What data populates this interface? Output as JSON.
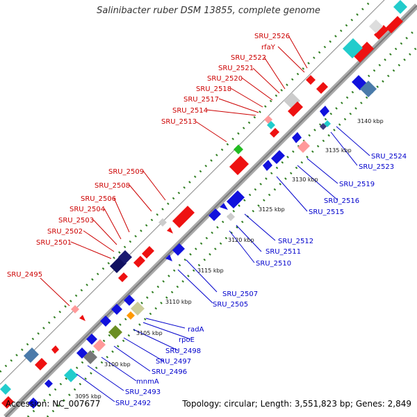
{
  "title": "Salinibacter ruber DSM 13855, complete genome",
  "footer": {
    "accession": "Accession: NC_007677",
    "summary": "Topology: circular; Length: 3,551,823 bp; Genes: 2,849"
  },
  "colors": {
    "plus_strand_label": "#cc0000",
    "minus_strand_label": "#0000cc",
    "backbone": "#9a9a9a",
    "tick": "#2e7d1f"
  },
  "ruler": [
    "3095 kbp",
    "3100 kbp",
    "3105 kbp",
    "3110 kbp",
    "3115 kbp",
    "3120 kbp",
    "3125 kbp",
    "3130 kbp",
    "3135 kbp",
    "3140 kbp"
  ],
  "plus_labels": [
    "SRU_2495",
    "SRU_2501",
    "SRU_2502",
    "SRU_2503",
    "SRU_2504",
    "SRU_2506",
    "SRU_2508",
    "SRU_2509",
    "SRU_2513",
    "SRU_2514",
    "SRU_2517",
    "SRU_2518",
    "SRU_2520",
    "SRU_2521",
    "SRU_2522",
    "rfaY",
    "SRU_2526"
  ],
  "minus_labels": [
    "SRU_2492",
    "SRU_2493",
    "mnmA",
    "SRU_2496",
    "SRU_2497",
    "SRU_2498",
    "rpoE",
    "radA",
    "SRU_2505",
    "SRU_2507",
    "SRU_2510",
    "SRU_2511",
    "SRU_2512",
    "SRU_2515",
    "SRU_2516",
    "SRU_2519",
    "SRU_2523",
    "SRU_2524"
  ]
}
